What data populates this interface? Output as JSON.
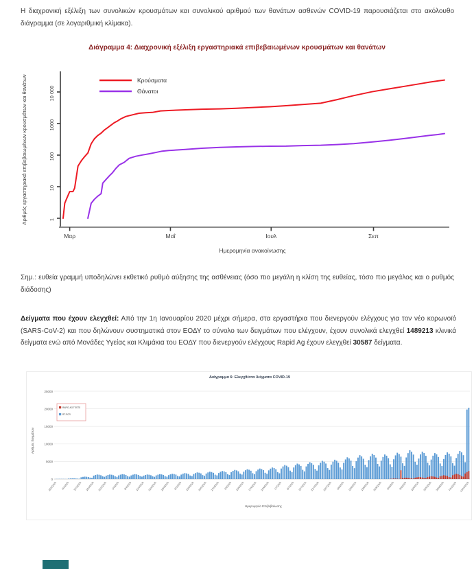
{
  "page": {
    "intro_text": "Η διαχρονική εξέλιξη των συνολικών κρουσμάτων και συνολικού αριθμού των θανάτων ασθενών COVID-19 παρουσιάζεται στο ακόλουθο διάγραμμα (σε λογαριθμική κλίμακα).",
    "note_text": "Σημ.: ευθεία γραμμή υποδηλώνει εκθετικό ρυθμό αύξησης της ασθένειας (όσο πιο μεγάλη η κλίση της ευθείας, τόσο πιο μεγάλος και ο ρυθμός διάδοσης)",
    "samples_paragraph": {
      "lead_bold": "Δείγματα που έχουν ελεγχθεί:",
      "text_1": " Από την 1η Ιανουαρίου 2020 μέχρι σήμερα, στα εργαστήρια που διενεργούν ελέγχους για τον νέο κορωνοϊό (SARS-CoV-2) και που δηλώνουν συστηματικά στον ΕΟΔΥ το σύνολο των δειγμάτων που ελέγχουν, έχουν συνολικά ελεγχθεί ",
      "clinical_samples_count": "1489213",
      "text_2": " κλινικά δείγματα ενώ από Μονάδες Υγείας και Κλιμάκια του ΕΟΔΥ που διενεργούν ελέγχους Rapid Ag έχουν ελεγχθεί ",
      "rapid_ag_count": "30587",
      "text_3": " δείγματα."
    }
  },
  "colors": {
    "chart4_title": "#8a2525",
    "chart6_title": "#333f50",
    "cases_line": "#ed1b24",
    "deaths_line": "#9932e8",
    "bar_blue": "#5b9bd5",
    "bar_red": "#c0392b",
    "legend_border": "#e89c9c",
    "axis_text": "#595959",
    "footer_block": "#1e6f74"
  },
  "chart_data": [
    {
      "type": "line",
      "title": "Διάγραμμα 4: Διαχρονική εξέλιξη εργαστηριακά επιβεβαιωμένων κρουσμάτων και θανάτων",
      "xlabel": "Ημερομηνία ανακοίνωσης",
      "ylabel": "Αριθμός εργαστηριακά επιβεβαιωμένων κρουσμάτων και θανάτων",
      "yscale": "log",
      "ylim": [
        1,
        40000
      ],
      "yticks": [
        "1",
        "10",
        "100",
        "1000",
        "10 000"
      ],
      "ytick_values": [
        1,
        10,
        100,
        1000,
        10000
      ],
      "x_domain_days": [
        0,
        231
      ],
      "x_domain_dates": [
        "26/2/2020",
        "14/10/2020"
      ],
      "xticks": [
        {
          "label": "Μαρ",
          "day": 4
        },
        {
          "label": "Μαΐ",
          "day": 65
        },
        {
          "label": "Ιουλ",
          "day": 126
        },
        {
          "label": "Σεπ",
          "day": 188
        }
      ],
      "legend_position": "top-left",
      "grid": false,
      "series": [
        {
          "name": "Κρούσματα",
          "color": "#ed1b24",
          "points": [
            [
              0,
              1
            ],
            [
              1,
              3
            ],
            [
              2,
              4
            ],
            [
              4,
              7
            ],
            [
              6,
              7
            ],
            [
              7,
              9
            ],
            [
              9,
              45
            ],
            [
              11,
              66
            ],
            [
              13,
              89
            ],
            [
              15,
              117
            ],
            [
              17,
              228
            ],
            [
              19,
              331
            ],
            [
              21,
              418
            ],
            [
              23,
              495
            ],
            [
              25,
              624
            ],
            [
              27,
              743
            ],
            [
              29,
              892
            ],
            [
              31,
              1061
            ],
            [
              33,
              1212
            ],
            [
              35,
              1415
            ],
            [
              38,
              1673
            ],
            [
              42,
              1884
            ],
            [
              46,
              2114
            ],
            [
              50,
              2207
            ],
            [
              54,
              2245
            ],
            [
              59,
              2517
            ],
            [
              64,
              2591
            ],
            [
              74,
              2716
            ],
            [
              84,
              2840
            ],
            [
              95,
              2915
            ],
            [
              105,
              3049
            ],
            [
              115,
              3227
            ],
            [
              125,
              3409
            ],
            [
              135,
              3672
            ],
            [
              145,
              4007
            ],
            [
              156,
              4401
            ],
            [
              166,
              5749
            ],
            [
              176,
              7684
            ],
            [
              187,
              10134
            ],
            [
              197,
              12452
            ],
            [
              207,
              15142
            ],
            [
              217,
              18475
            ],
            [
              222,
              20541
            ],
            [
              227,
              22358
            ],
            [
              231,
              23947
            ]
          ]
        },
        {
          "name": "Θάνατοι",
          "color": "#9932e8",
          "points": [
            [
              15,
              1
            ],
            [
              17,
              3
            ],
            [
              19,
              4
            ],
            [
              21,
              5
            ],
            [
              23,
              6
            ],
            [
              24,
              13
            ],
            [
              26,
              17
            ],
            [
              28,
              22
            ],
            [
              30,
              28
            ],
            [
              32,
              38
            ],
            [
              34,
              49
            ],
            [
              37,
              59
            ],
            [
              40,
              79
            ],
            [
              44,
              92
            ],
            [
              48,
              101
            ],
            [
              52,
              110
            ],
            [
              56,
              121
            ],
            [
              60,
              134
            ],
            [
              64,
              140
            ],
            [
              74,
              151
            ],
            [
              84,
              165
            ],
            [
              95,
              175
            ],
            [
              105,
              182
            ],
            [
              115,
              188
            ],
            [
              125,
              192
            ],
            [
              135,
              193
            ],
            [
              145,
              201
            ],
            [
              156,
              206
            ],
            [
              166,
              216
            ],
            [
              176,
              232
            ],
            [
              187,
              260
            ],
            [
              197,
              293
            ],
            [
              207,
              338
            ],
            [
              217,
              391
            ],
            [
              222,
              420
            ],
            [
              227,
              449
            ],
            [
              231,
              482
            ]
          ]
        }
      ]
    },
    {
      "type": "bar",
      "title": "Διάγραμμα 6: Ελεγχθέντα δείγματα COVID-19",
      "xlabel": "Ημερομηνία Επιβεβαίωσης",
      "ylabel": "Αριθμός δειγμάτων",
      "ylim": [
        0,
        25000
      ],
      "ytick_step": 5000,
      "yticks": [
        "0",
        "5000",
        "10000",
        "15000",
        "20000",
        "25000"
      ],
      "grid": true,
      "legend_position": "top-left",
      "x_tick_labels": [
        "26/2/2020",
        "4/3/2020",
        "11/3/2020",
        "18/3/2020",
        "25/3/2020",
        "1/4/2020",
        "8/4/2020",
        "15/4/2020",
        "22/4/2020",
        "29/4/2020",
        "6/5/2020",
        "13/5/2020",
        "20/5/2020",
        "27/5/2020",
        "3/6/2020",
        "10/6/2020",
        "17/6/2020",
        "24/6/2020",
        "1/7/2020",
        "8/7/2020",
        "15/7/2020",
        "22/7/2020",
        "29/7/2020",
        "5/8/2020",
        "12/8/2020",
        "19/8/2020",
        "26/8/2020",
        "2/9/2020",
        "9/9/2020",
        "16/9/2020",
        "23/9/2020",
        "30/9/2020",
        "7/10/2020",
        "14/10/2020"
      ],
      "series": [
        {
          "name": "RAPID AG TESTS",
          "color": "#c0392b",
          "start_day": 187,
          "values": [
            80,
            120,
            150,
            130,
            100,
            60,
            2500,
            300,
            350,
            400,
            380,
            300,
            200,
            150,
            400,
            500,
            600,
            550,
            450,
            300,
            250,
            600,
            700,
            800,
            750,
            650,
            450,
            350,
            800,
            950,
            1100,
            1000,
            900,
            600,
            500,
            1100,
            1300,
            1500,
            1400,
            1200,
            800,
            700,
            1600,
            2000,
            2300
          ]
        },
        {
          "name": "RT-PCR",
          "color": "#5b9bd5",
          "start_day": 0,
          "values": [
            45,
            55,
            60,
            55,
            50,
            35,
            30,
            150,
            180,
            200,
            190,
            170,
            120,
            100,
            520,
            630,
            700,
            660,
            590,
            420,
            350,
            980,
            1170,
            1300,
            1240,
            1100,
            780,
            650,
            980,
            1170,
            1300,
            1240,
            1100,
            780,
            650,
            1050,
            1260,
            1400,
            1330,
            1190,
            840,
            700,
            1050,
            1260,
            1400,
            1330,
            1190,
            840,
            700,
            980,
            1170,
            1300,
            1240,
            1100,
            780,
            650,
            1050,
            1260,
            1400,
            1330,
            1190,
            840,
            700,
            1130,
            1350,
            1500,
            1430,
            1280,
            900,
            750,
            1280,
            1530,
            1700,
            1620,
            1450,
            1020,
            850,
            1430,
            1710,
            1900,
            1810,
            1620,
            1140,
            950,
            1580,
            1890,
            2100,
            2000,
            1790,
            1260,
            1050,
            1730,
            2070,
            2300,
            2190,
            1960,
            1380,
            1150,
            1950,
            2340,
            2600,
            2470,
            2210,
            1560,
            1300,
            2100,
            2520,
            2800,
            2660,
            2380,
            1680,
            1400,
            2250,
            2700,
            3000,
            2850,
            2550,
            1800,
            1500,
            2480,
            2970,
            3300,
            3140,
            2810,
            1980,
            1650,
            3000,
            3600,
            4000,
            3800,
            3400,
            2400,
            2000,
            3300,
            3960,
            4400,
            4180,
            3740,
            2640,
            2200,
            3600,
            4320,
            4800,
            4560,
            4080,
            2880,
            2400,
            3900,
            4680,
            5200,
            4940,
            4420,
            3120,
            2600,
            4130,
            4950,
            5500,
            5230,
            4680,
            3300,
            2750,
            4650,
            5580,
            6200,
            5890,
            5270,
            3720,
            3100,
            5100,
            6120,
            6800,
            6460,
            5780,
            4080,
            3400,
            5400,
            6480,
            7200,
            6840,
            6120,
            4320,
            3600,
            5250,
            6300,
            7000,
            6650,
            5950,
            4200,
            3500,
            5630,
            6750,
            7500,
            7130,
            6380,
            4500,
            3750,
            6150,
            7380,
            8200,
            7790,
            6970,
            4920,
            4100,
            5850,
            7020,
            7800,
            7410,
            6630,
            4680,
            3900,
            5550,
            6660,
            7400,
            7030,
            6290,
            4440,
            3700,
            5700,
            6840,
            7600,
            7220,
            6460,
            4560,
            3800,
            6000,
            7200,
            8000,
            7600,
            6800,
            4800,
            19800,
            20300
          ]
        }
      ]
    }
  ]
}
